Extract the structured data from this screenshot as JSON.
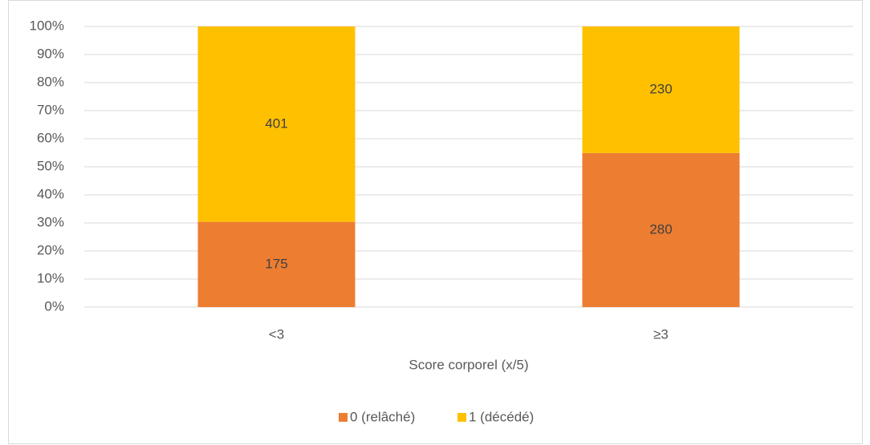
{
  "chart_data": {
    "type": "bar",
    "stacking": "percent",
    "categories": [
      "<3",
      "≥3"
    ],
    "series": [
      {
        "name": "0 (relâché)",
        "color": "#ED7D31",
        "values": [
          175,
          280
        ]
      },
      {
        "name": "1 (décédé)",
        "color": "#FFC000",
        "values": [
          401,
          230
        ]
      }
    ],
    "x_label": "Score corporel (x/5)",
    "ylim": [
      0,
      100
    ],
    "yticks": [
      {
        "value": 0,
        "label": "0%"
      },
      {
        "value": 10,
        "label": "10%"
      },
      {
        "value": 20,
        "label": "20%"
      },
      {
        "value": 30,
        "label": "30%"
      },
      {
        "value": 40,
        "label": "40%"
      },
      {
        "value": 50,
        "label": "50%"
      },
      {
        "value": 60,
        "label": "60%"
      },
      {
        "value": 70,
        "label": "70%"
      },
      {
        "value": 80,
        "label": "80%"
      },
      {
        "value": 90,
        "label": "90%"
      },
      {
        "value": 100,
        "label": "100%"
      }
    ],
    "grid": true,
    "legend": "bottom"
  }
}
